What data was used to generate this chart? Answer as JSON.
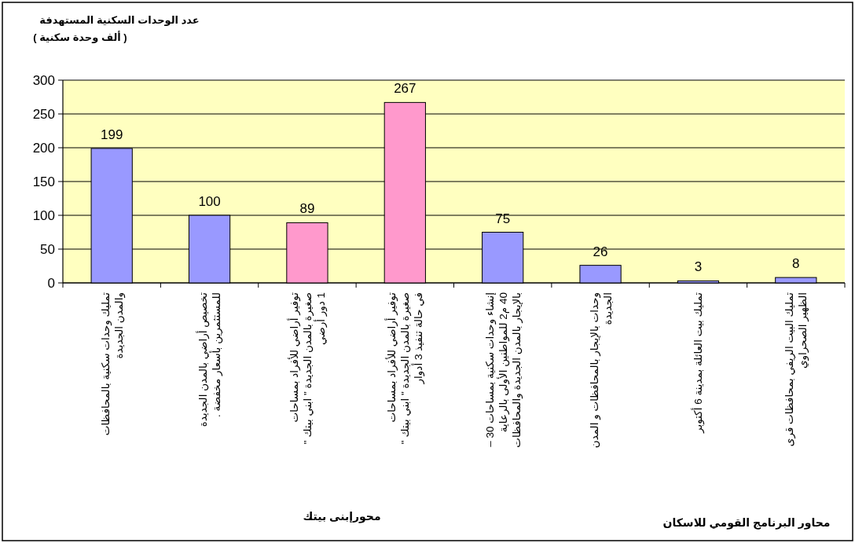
{
  "chart_data": {
    "type": "bar",
    "title": "عدد الوحدات السكنية المستهدفة",
    "subtitle": "( ألف وحدة سكنية )",
    "annotations": [
      "محورإبنى بيتك",
      "محاور البرنامج القومي للاسكان"
    ],
    "categories": [
      "تمليك وحدات سكنية بالمحافظات\nوالمدن الجديدة",
      "تخصيص أراضي بالمدن الجديدة\nللمستثمرين بأسعار مخفضة .",
      "توفير أراضي للأفراد بمساحات\nصغيرة بالمدن الجديدة \" ابني بيتك \"\n1 دور أرضي",
      "توفير أراضي للأفراد بمساحات\nصغيرة بالمدن الجديدة \" ابني بيتك \"\nفي حالة تنفيذ 3 أدوار",
      "إنشاء وحدات سكنية بمساحات 30 –\n40 م2 للمواطنين الأولى بالرعاية\nبالإيجار بالمدن الجديدة والمحافظات",
      "وحدات بالإيجار بالمحافظات و المدن\nالجديدة",
      "تمليك بيت العائلة بمدينة 6 أكتوبر",
      "تمليك البيت الريفي بمحافظات قرى\nالظهير الصحراوي"
    ],
    "values": [
      199,
      100,
      89,
      267,
      75,
      26,
      3,
      8
    ],
    "colors": [
      "#9999ff",
      "#9999ff",
      "#ff99cc",
      "#ff99cc",
      "#9999ff",
      "#9999ff",
      "#9999ff",
      "#9999ff"
    ],
    "ylim": [
      0,
      300
    ],
    "yticks": [
      0,
      50,
      100,
      150,
      200,
      250,
      300
    ],
    "grid": "y",
    "data_labels": true
  }
}
